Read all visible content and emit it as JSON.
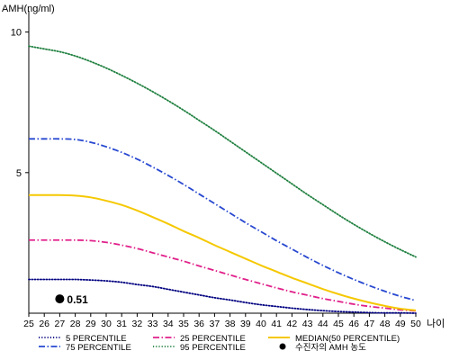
{
  "chart_data": {
    "type": "line",
    "ylabel": "AMH(ng/ml)",
    "xlabel": "나이",
    "x": [
      25,
      26,
      27,
      28,
      29,
      30,
      31,
      32,
      33,
      34,
      35,
      36,
      37,
      38,
      39,
      40,
      41,
      42,
      43,
      44,
      45,
      46,
      47,
      48,
      49,
      50
    ],
    "x_ticks": [
      "25",
      "26",
      "27",
      "28",
      "29",
      "30",
      "31",
      "32",
      "33",
      "34",
      "35",
      "36",
      "37",
      "38",
      "39",
      "40",
      "41",
      "42",
      "43",
      "44",
      "45",
      "46",
      "47",
      "48",
      "49",
      "50"
    ],
    "xlim": [
      25,
      50
    ],
    "ylim": [
      0,
      10.5
    ],
    "y_ticks": [
      "5",
      "10"
    ],
    "grid": false,
    "legend_position": "bottom",
    "series": [
      {
        "name": "5 PERCENTILE",
        "color": "#000080",
        "dash": "dotted",
        "values": [
          1.2,
          1.2,
          1.2,
          1.2,
          1.18,
          1.15,
          1.1,
          1.02,
          0.95,
          0.85,
          0.75,
          0.65,
          0.55,
          0.47,
          0.38,
          0.3,
          0.24,
          0.18,
          0.13,
          0.09,
          0.06,
          0.04,
          0.02,
          0.01,
          0.01,
          0.0
        ]
      },
      {
        "name": "25 PERCENTILE",
        "color": "#e0208a",
        "dash": "dashdot",
        "values": [
          2.6,
          2.6,
          2.6,
          2.6,
          2.58,
          2.52,
          2.42,
          2.3,
          2.15,
          2.0,
          1.85,
          1.68,
          1.52,
          1.36,
          1.2,
          1.05,
          0.9,
          0.76,
          0.64,
          0.52,
          0.42,
          0.32,
          0.24,
          0.18,
          0.12,
          0.08
        ]
      },
      {
        "name": "MEDIAN(50 PERCENTILE)",
        "color": "#f5c800",
        "dash": "solid",
        "values": [
          4.2,
          4.2,
          4.2,
          4.18,
          4.12,
          4.0,
          3.85,
          3.65,
          3.42,
          3.18,
          2.92,
          2.68,
          2.42,
          2.18,
          1.94,
          1.7,
          1.48,
          1.26,
          1.06,
          0.86,
          0.68,
          0.52,
          0.38,
          0.26,
          0.16,
          0.1
        ]
      },
      {
        "name": "75 PERCENTILE",
        "color": "#2848d0",
        "dash": "dashdot",
        "values": [
          6.2,
          6.2,
          6.2,
          6.18,
          6.08,
          5.92,
          5.72,
          5.48,
          5.2,
          4.9,
          4.58,
          4.24,
          3.9,
          3.56,
          3.22,
          2.9,
          2.58,
          2.28,
          1.98,
          1.7,
          1.44,
          1.2,
          0.98,
          0.78,
          0.6,
          0.45
        ]
      },
      {
        "name": "95 PERCENTILE",
        "color": "#208040",
        "dash": "dotted",
        "values": [
          9.5,
          9.4,
          9.3,
          9.15,
          8.95,
          8.72,
          8.46,
          8.18,
          7.88,
          7.56,
          7.22,
          6.86,
          6.5,
          6.12,
          5.74,
          5.36,
          4.98,
          4.6,
          4.22,
          3.86,
          3.5,
          3.16,
          2.84,
          2.54,
          2.26,
          2.0
        ]
      }
    ],
    "patient": {
      "label": "수진자의 AMH 농도",
      "x": 27,
      "y": 0.51,
      "value_label": "0.51",
      "color": "#000000"
    },
    "legend_order": [
      "5 PERCENTILE",
      "25 PERCENTILE",
      "MEDIAN(50 PERCENTILE)",
      "75 PERCENTILE",
      "95 PERCENTILE",
      "수진자의 AMH 농도"
    ]
  }
}
